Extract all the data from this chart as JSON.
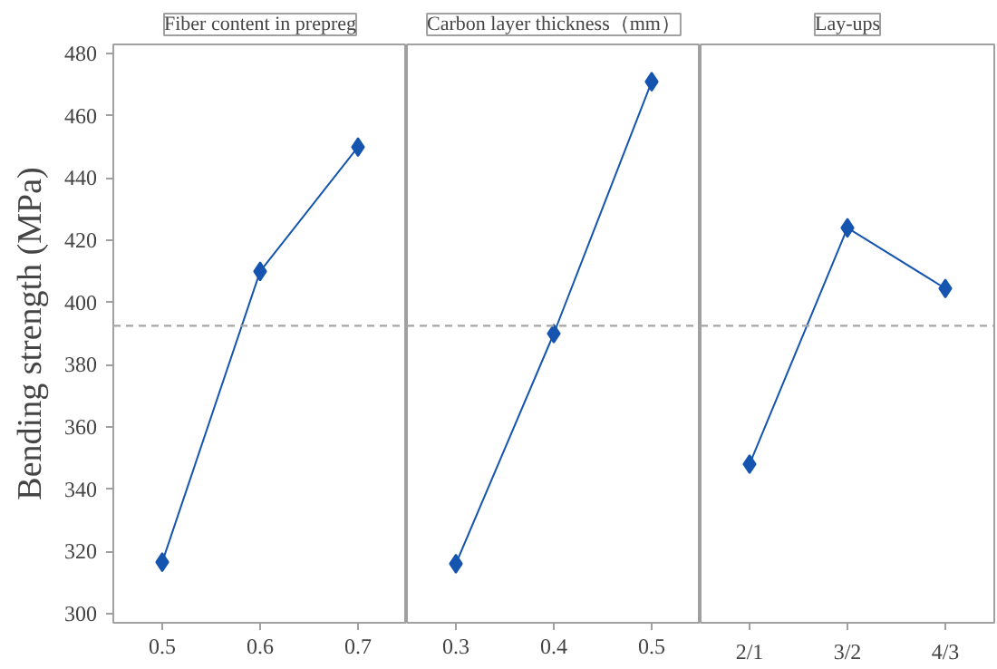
{
  "chart_data": [
    {
      "type": "line",
      "title": "Fiber content in prepreg",
      "ylabel": "Bending strength (MPa)",
      "categories": [
        "0.5",
        "0.6",
        "0.7"
      ],
      "series": [
        {
          "color": "#1555b0",
          "values": [
            316.5,
            410,
            450
          ]
        }
      ],
      "ylim": [
        297,
        483
      ],
      "yticks": [
        300,
        320,
        340,
        360,
        380,
        400,
        420,
        440,
        460,
        480
      ],
      "ref_lines": [
        {
          "axis": "y",
          "value": 392.5,
          "color": "#a6a6a6",
          "line_style": "dashed"
        }
      ],
      "marker": "diamond",
      "line_style": "solid",
      "grid": false
    },
    {
      "type": "line",
      "title": "Carbon layer thickness（mm）",
      "categories": [
        "0.3",
        "0.4",
        "0.5"
      ],
      "series": [
        {
          "color": "#1555b0",
          "values": [
            316,
            390,
            471
          ]
        }
      ],
      "ylim": [
        297,
        483
      ],
      "tick_labels": "x",
      "ref_lines": [
        {
          "axis": "y",
          "value": 392.5,
          "color": "#a6a6a6",
          "line_style": "dashed"
        }
      ],
      "marker": "diamond",
      "line_style": "solid",
      "grid": false
    },
    {
      "type": "line",
      "title": "Lay-ups",
      "categories": [
        "2/1",
        "3/2",
        "4/3"
      ],
      "series": [
        {
          "color": "#1555b0",
          "values": [
            348,
            424,
            404.5
          ]
        }
      ],
      "ylim": [
        297,
        483
      ],
      "tick_labels": "x",
      "ref_lines": [
        {
          "axis": "y",
          "value": 392.5,
          "color": "#a6a6a6",
          "line_style": "dashed"
        }
      ],
      "marker": "diamond",
      "line_style": "solid",
      "grid": false
    }
  ]
}
